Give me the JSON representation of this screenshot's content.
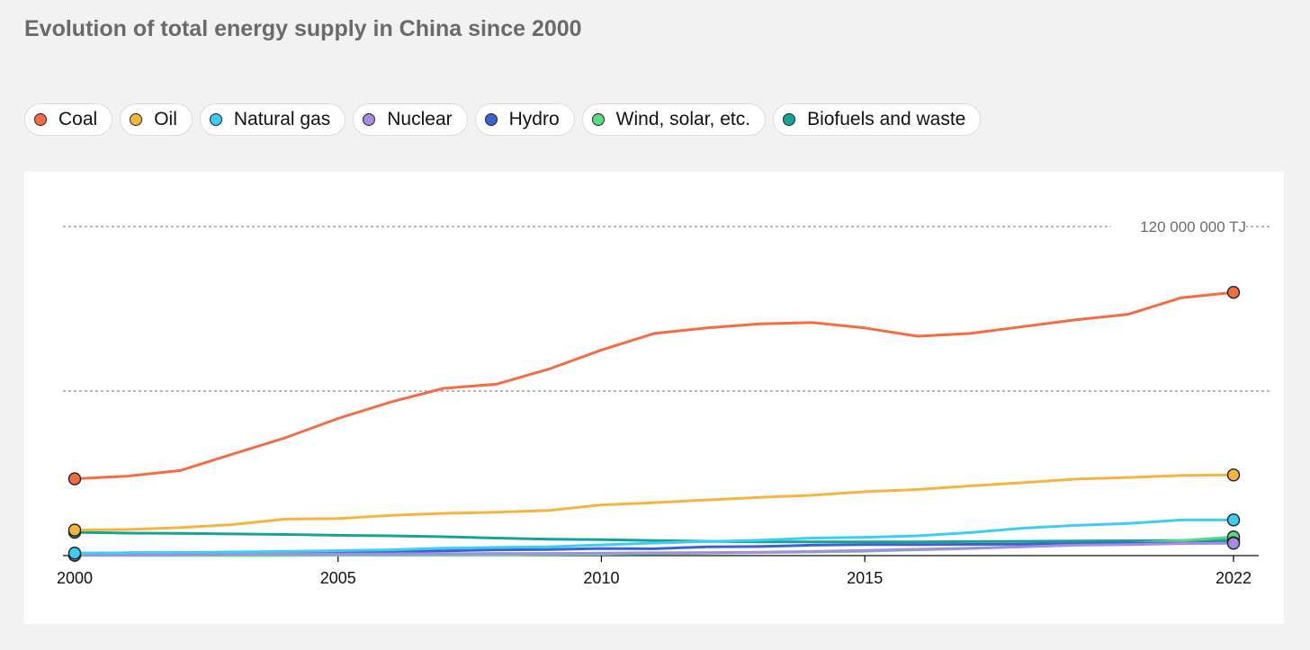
{
  "title": "Evolution of total energy supply in China since 2000",
  "chart_data": {
    "type": "line",
    "title": "Evolution of total energy supply in China since 2000",
    "x": [
      2000,
      2001,
      2002,
      2003,
      2004,
      2005,
      2006,
      2007,
      2008,
      2009,
      2010,
      2011,
      2012,
      2013,
      2014,
      2015,
      2016,
      2017,
      2018,
      2019,
      2020,
      2021,
      2022
    ],
    "xticks": [
      "2000",
      "2005",
      "2010",
      "2015",
      "2022"
    ],
    "ylim": [
      0,
      120000000
    ],
    "gridlines": [
      60000000,
      120000000
    ],
    "top_grid_label": "120 000 000 TJ",
    "legend_position": "top",
    "grid": true,
    "series": [
      {
        "name": "Coal",
        "color": "#f26d42",
        "values": [
          28000000,
          29000000,
          31000000,
          37000000,
          43000000,
          50000000,
          56000000,
          61000000,
          62500000,
          68000000,
          75000000,
          81000000,
          83000000,
          84500000,
          85000000,
          83000000,
          80000000,
          81000000,
          83500000,
          86000000,
          88000000,
          94000000,
          96000000
        ]
      },
      {
        "name": "Oil",
        "color": "#f5b440",
        "values": [
          9300000,
          9500000,
          10200000,
          11300000,
          13300000,
          13500000,
          14700000,
          15400000,
          15800000,
          16500000,
          18500000,
          19300000,
          20300000,
          21200000,
          22000000,
          23300000,
          24100000,
          25400000,
          26600000,
          27900000,
          28500000,
          29200000,
          29400000
        ]
      },
      {
        "name": "Natural gas",
        "color": "#3dcdf2",
        "values": [
          900000,
          1000000,
          1100000,
          1300000,
          1500000,
          1800000,
          2100000,
          2700000,
          3000000,
          3200000,
          3900000,
          4600000,
          5100000,
          5600000,
          6400000,
          6700000,
          7200000,
          8400000,
          10000000,
          11000000,
          11700000,
          13000000,
          13000000
        ]
      },
      {
        "name": "Nuclear",
        "color": "#a78be0",
        "values": [
          200000,
          200000,
          300000,
          500000,
          600000,
          600000,
          600000,
          700000,
          800000,
          800000,
          900000,
          1000000,
          1100000,
          1200000,
          1500000,
          1900000,
          2300000,
          2700000,
          3200000,
          3800000,
          4000000,
          4400000,
          4500000
        ]
      },
      {
        "name": "Hydro",
        "color": "#3a63d2",
        "values": [
          800000,
          1000000,
          1000000,
          1100000,
          1300000,
          1400000,
          1500000,
          1700000,
          2100000,
          2200000,
          2600000,
          2500000,
          3200000,
          3300000,
          3800000,
          4000000,
          4000000,
          4100000,
          4200000,
          4400000,
          4600000,
          4500000,
          4700000
        ]
      },
      {
        "name": "Wind, solar, etc.",
        "color": "#58db84",
        "values": [
          100000,
          100000,
          100000,
          100000,
          100000,
          200000,
          200000,
          200000,
          300000,
          400000,
          500000,
          700000,
          900000,
          1100000,
          1300000,
          1600000,
          2100000,
          2600000,
          3300000,
          3900000,
          4500000,
          5500000,
          6800000
        ]
      },
      {
        "name": "Biofuels and waste",
        "color": "#17a394",
        "values": [
          8500000,
          8200000,
          8100000,
          7900000,
          7700000,
          7400000,
          7200000,
          6900000,
          6400000,
          6000000,
          5800000,
          5500000,
          5200000,
          5000000,
          5000000,
          5000000,
          5000000,
          5100000,
          5200000,
          5300000,
          5400000,
          5500000,
          5600000
        ]
      }
    ]
  }
}
